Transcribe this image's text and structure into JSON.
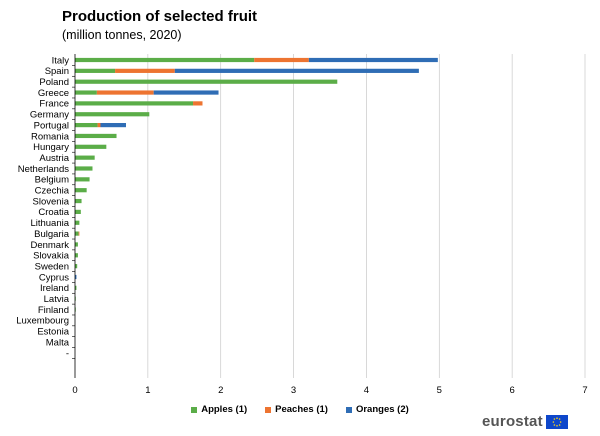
{
  "colors": {
    "apples": "#5bad48",
    "peaches": "#ed7431",
    "oranges": "#2f6db5",
    "grid": "#c8c8c8",
    "axis": "#000000"
  },
  "logo": {
    "text": "eurostat",
    "icon": "eu-flag-icon"
  },
  "chart_data": {
    "type": "bar",
    "orientation": "horizontal",
    "stacked": true,
    "title": "Production of selected fruit",
    "subtitle": "(million tonnes, 2020)",
    "xlabel": "",
    "ylabel": "",
    "xlim": [
      0,
      7
    ],
    "xticks": [
      "0",
      "1",
      "2",
      "3",
      "4",
      "5",
      "6",
      "7"
    ],
    "grid": true,
    "legend_position": "bottom",
    "categories": [
      "Italy",
      "Spain",
      "Poland",
      "Greece",
      "France",
      "Germany",
      "Portugal",
      "Romania",
      "Hungary",
      "Austria",
      "Netherlands",
      "Belgium",
      "Czechia",
      "Slovenia",
      "Croatia",
      "Lithuania",
      "Bulgaria",
      "Denmark",
      "Slovakia",
      "Sweden",
      "Cyprus",
      "Ireland",
      "Latvia",
      "Finland",
      "Luxembourg",
      "Estonia",
      "Malta",
      "-"
    ],
    "series": [
      {
        "name": "Apples (1)",
        "key": "apples",
        "values": [
          2.46,
          0.55,
          3.6,
          0.3,
          1.62,
          1.02,
          0.31,
          0.57,
          0.43,
          0.27,
          0.24,
          0.2,
          0.16,
          0.09,
          0.08,
          0.06,
          0.05,
          0.04,
          0.04,
          0.03,
          0.0,
          0.02,
          0.01,
          0.01,
          0.0,
          0.0,
          0.0,
          0.0
        ]
      },
      {
        "name": "Peaches (1)",
        "key": "peaches",
        "values": [
          0.75,
          0.82,
          0.0,
          0.78,
          0.13,
          0.0,
          0.04,
          0.0,
          0.0,
          0.0,
          0.0,
          0.0,
          0.0,
          0.0,
          0.0,
          0.0,
          0.01,
          0.0,
          0.0,
          0.0,
          0.0,
          0.0,
          0.0,
          0.0,
          0.0,
          0.0,
          0.0,
          0.0
        ]
      },
      {
        "name": "Oranges (2)",
        "key": "oranges",
        "values": [
          1.77,
          3.35,
          0.0,
          0.89,
          0.0,
          0.0,
          0.35,
          0.0,
          0.0,
          0.0,
          0.0,
          0.0,
          0.0,
          0.0,
          0.0,
          0.0,
          0.0,
          0.0,
          0.0,
          0.0,
          0.02,
          0.0,
          0.0,
          0.0,
          0.0,
          0.0,
          0.0,
          0.0
        ]
      }
    ]
  }
}
